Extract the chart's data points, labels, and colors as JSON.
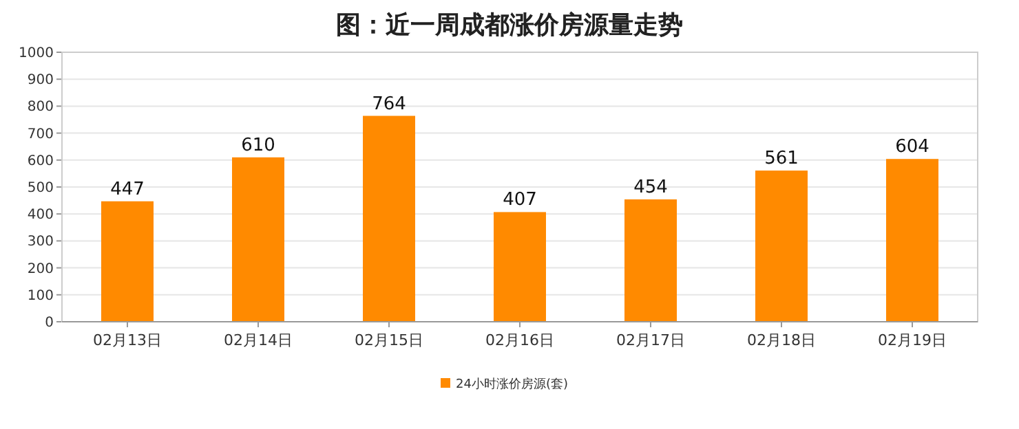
{
  "chart_data": {
    "type": "bar",
    "title": "图：近一周成都涨价房源量走势",
    "categories": [
      "02月13日",
      "02月14日",
      "02月15日",
      "02月16日",
      "02月17日",
      "02月18日",
      "02月19日"
    ],
    "series": [
      {
        "name": "24小时涨价房源(套)",
        "color": "#ff8a00",
        "values": [
          447,
          610,
          764,
          407,
          454,
          561,
          604
        ]
      }
    ],
    "ylim": [
      0,
      1000
    ],
    "yticks": [
      0,
      100,
      200,
      300,
      400,
      500,
      600,
      700,
      800,
      900,
      1000
    ],
    "grid": "y",
    "data_labels": true,
    "legend": "bottom"
  }
}
